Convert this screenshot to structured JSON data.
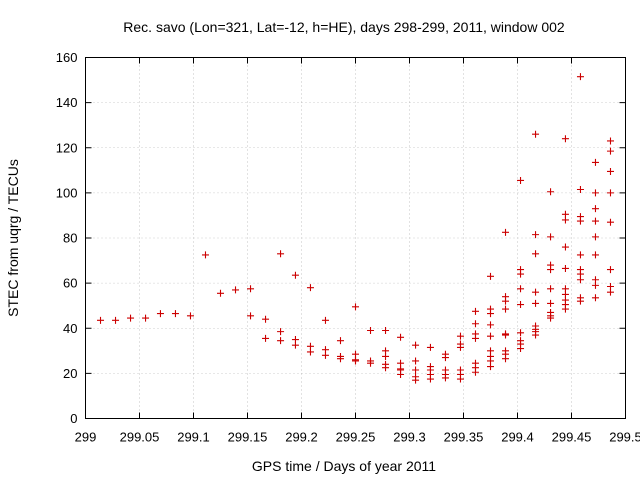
{
  "chart_data": {
    "type": "scatter",
    "title": "Rec. savo (Lon=321, Lat=-12, h=HE), days 298-299, 2011, window 002",
    "xlabel": "GPS time / Days of year 2011",
    "ylabel": "STEC from uqrg / TECUs",
    "xlim": [
      299,
      299.5
    ],
    "ylim": [
      0,
      160
    ],
    "grid": true,
    "marker": "+",
    "x_ticks": [
      299,
      299.05,
      299.1,
      299.15,
      299.2,
      299.25,
      299.3,
      299.35,
      299.4,
      299.45,
      299.5
    ],
    "x_tick_labels": [
      "299",
      "299.05",
      "299.1",
      "299.15",
      "299.2",
      "299.25",
      "299.3",
      "299.35",
      "299.4",
      "299.45",
      "299.5"
    ],
    "y_ticks": [
      0,
      20,
      40,
      60,
      80,
      100,
      120,
      140,
      160
    ],
    "y_tick_labels": [
      "0",
      "20",
      "40",
      "60",
      "80",
      "100",
      "120",
      "140",
      "160"
    ],
    "series_color": "#cc0000",
    "points": [
      [
        299.0139,
        43.5
      ],
      [
        299.0278,
        43.5
      ],
      [
        299.0417,
        44.5
      ],
      [
        299.0556,
        44.5
      ],
      [
        299.0694,
        46.5
      ],
      [
        299.0833,
        46.5
      ],
      [
        299.0972,
        45.5
      ],
      [
        299.1111,
        72.5
      ],
      [
        299.125,
        55.5
      ],
      [
        299.1389,
        57.0
      ],
      [
        299.1528,
        57.5
      ],
      [
        299.1528,
        45.5
      ],
      [
        299.1667,
        44.0
      ],
      [
        299.1667,
        35.5
      ],
      [
        299.1806,
        73.0
      ],
      [
        299.1806,
        38.5
      ],
      [
        299.1806,
        34.5
      ],
      [
        299.1944,
        63.5
      ],
      [
        299.1944,
        35.0
      ],
      [
        299.1944,
        32.5
      ],
      [
        299.2083,
        58.0
      ],
      [
        299.2083,
        32.0
      ],
      [
        299.2083,
        29.5
      ],
      [
        299.2222,
        43.5
      ],
      [
        299.2222,
        30.5
      ],
      [
        299.2222,
        28.0
      ],
      [
        299.2361,
        34.5
      ],
      [
        299.2361,
        27.5
      ],
      [
        299.2361,
        26.5
      ],
      [
        299.25,
        49.5
      ],
      [
        299.25,
        28.5
      ],
      [
        299.25,
        26.0
      ],
      [
        299.25,
        25.5
      ],
      [
        299.2639,
        39.0
      ],
      [
        299.2639,
        25.5
      ],
      [
        299.2639,
        24.5
      ],
      [
        299.2778,
        39.0
      ],
      [
        299.2778,
        30.0
      ],
      [
        299.2778,
        27.5
      ],
      [
        299.2778,
        24.0
      ],
      [
        299.2778,
        22.5
      ],
      [
        299.2917,
        36.0
      ],
      [
        299.2917,
        24.5
      ],
      [
        299.2917,
        22.0
      ],
      [
        299.2917,
        19.5
      ],
      [
        299.2917,
        21.5
      ],
      [
        299.3056,
        32.5
      ],
      [
        299.3056,
        25.5
      ],
      [
        299.3056,
        21.5
      ],
      [
        299.3056,
        18.5
      ],
      [
        299.3056,
        17.0
      ],
      [
        299.3194,
        31.5
      ],
      [
        299.3194,
        23.0
      ],
      [
        299.3194,
        21.5
      ],
      [
        299.3194,
        19.5
      ],
      [
        299.3194,
        17.5
      ],
      [
        299.3333,
        28.5
      ],
      [
        299.3333,
        27.0
      ],
      [
        299.3333,
        21.5
      ],
      [
        299.3333,
        19.5
      ],
      [
        299.3333,
        18.0
      ],
      [
        299.3472,
        36.5
      ],
      [
        299.3472,
        33.0
      ],
      [
        299.3472,
        31.5
      ],
      [
        299.3472,
        21.5
      ],
      [
        299.3472,
        19.5
      ],
      [
        299.3472,
        17.5
      ],
      [
        299.3611,
        47.5
      ],
      [
        299.3611,
        42.0
      ],
      [
        299.3611,
        37.5
      ],
      [
        299.3611,
        35.5
      ],
      [
        299.3611,
        24.5
      ],
      [
        299.3611,
        22.5
      ],
      [
        299.3611,
        20.5
      ],
      [
        299.375,
        63.0
      ],
      [
        299.375,
        48.5
      ],
      [
        299.375,
        46.5
      ],
      [
        299.375,
        41.5
      ],
      [
        299.375,
        36.5
      ],
      [
        299.375,
        30.0
      ],
      [
        299.375,
        27.5
      ],
      [
        299.375,
        25.5
      ],
      [
        299.375,
        23.0
      ],
      [
        299.3889,
        82.5
      ],
      [
        299.3889,
        54.0
      ],
      [
        299.3889,
        52.0
      ],
      [
        299.3889,
        48.5
      ],
      [
        299.3889,
        37.5
      ],
      [
        299.3889,
        37.0
      ],
      [
        299.3889,
        30.0
      ],
      [
        299.3889,
        28.5
      ],
      [
        299.3889,
        26.5
      ],
      [
        299.4028,
        105.5
      ],
      [
        299.4028,
        66.0
      ],
      [
        299.4028,
        64.0
      ],
      [
        299.4028,
        57.5
      ],
      [
        299.4028,
        50.5
      ],
      [
        299.4028,
        38.0
      ],
      [
        299.4028,
        34.5
      ],
      [
        299.4028,
        33.0
      ],
      [
        299.4028,
        31.0
      ],
      [
        299.4167,
        126.0
      ],
      [
        299.4167,
        81.5
      ],
      [
        299.4167,
        73.0
      ],
      [
        299.4167,
        56.0
      ],
      [
        299.4167,
        51.0
      ],
      [
        299.4167,
        41.0
      ],
      [
        299.4167,
        39.5
      ],
      [
        299.4167,
        38.5
      ],
      [
        299.4167,
        37.0
      ],
      [
        299.4306,
        100.5
      ],
      [
        299.4306,
        80.5
      ],
      [
        299.4306,
        68.0
      ],
      [
        299.4306,
        66.0
      ],
      [
        299.4306,
        57.5
      ],
      [
        299.4306,
        51.0
      ],
      [
        299.4306,
        47.0
      ],
      [
        299.4306,
        45.5
      ],
      [
        299.4306,
        44.5
      ],
      [
        299.4444,
        124.0
      ],
      [
        299.4444,
        90.5
      ],
      [
        299.4444,
        88.0
      ],
      [
        299.4444,
        76.0
      ],
      [
        299.4444,
        66.5
      ],
      [
        299.4444,
        57.5
      ],
      [
        299.4444,
        55.0
      ],
      [
        299.4444,
        52.5
      ],
      [
        299.4444,
        50.5
      ],
      [
        299.4444,
        48.5
      ],
      [
        299.4583,
        151.5
      ],
      [
        299.4583,
        101.5
      ],
      [
        299.4583,
        89.5
      ],
      [
        299.4583,
        87.5
      ],
      [
        299.4583,
        72.5
      ],
      [
        299.4583,
        66.0
      ],
      [
        299.4583,
        64.0
      ],
      [
        299.4583,
        61.5
      ],
      [
        299.4583,
        53.5
      ],
      [
        299.4583,
        52.0
      ],
      [
        299.4722,
        113.5
      ],
      [
        299.4722,
        100.0
      ],
      [
        299.4722,
        93.0
      ],
      [
        299.4722,
        87.5
      ],
      [
        299.4722,
        80.5
      ],
      [
        299.4722,
        72.5
      ],
      [
        299.4722,
        61.5
      ],
      [
        299.4722,
        59.0
      ],
      [
        299.4722,
        53.5
      ],
      [
        299.4861,
        123.0
      ],
      [
        299.4861,
        118.5
      ],
      [
        299.4861,
        109.5
      ],
      [
        299.4861,
        100.0
      ],
      [
        299.4861,
        87.0
      ],
      [
        299.4861,
        66.0
      ],
      [
        299.4861,
        58.5
      ],
      [
        299.4861,
        56.0
      ]
    ]
  }
}
